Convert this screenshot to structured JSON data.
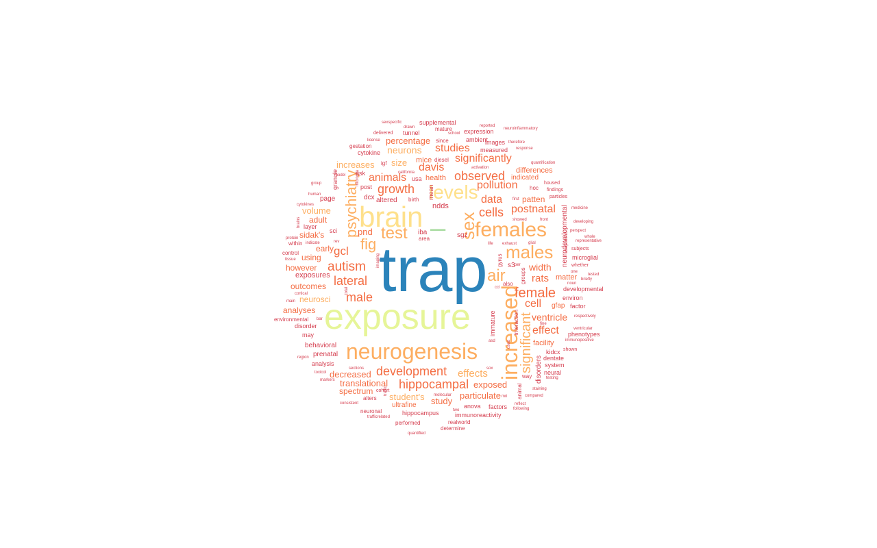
{
  "palette": {
    "big": "#2b83ba",
    "yellowgreen": "#e6f598",
    "yellow": "#fee08b",
    "lightorange": "#fdae61",
    "orange": "#f46d43",
    "red": "#d53e4f",
    "green": "#abdda4"
  },
  "words": [
    {
      "t": "trap",
      "c": "big"
    },
    {
      "t": "exposure",
      "c": "yellowgreen"
    },
    {
      "t": "brain",
      "c": "yellow"
    },
    {
      "t": "–",
      "c": "green"
    },
    {
      "t": "neurogenesis",
      "c": "lightorange"
    },
    {
      "t": "females",
      "c": "lightorange"
    },
    {
      "t": "increased",
      "c": "lightorange"
    },
    {
      "t": "sex",
      "c": "lightorange"
    },
    {
      "t": "levels",
      "c": "yellow"
    },
    {
      "t": "males",
      "c": "lightorange"
    },
    {
      "t": "test",
      "c": "lightorange"
    },
    {
      "t": "fig",
      "c": "lightorange"
    },
    {
      "t": "air",
      "c": "lightorange"
    },
    {
      "t": "psychiatry",
      "c": "lightorange"
    },
    {
      "t": "significant",
      "c": "lightorange"
    },
    {
      "t": "female",
      "c": "orange"
    },
    {
      "t": "autism",
      "c": "orange"
    },
    {
      "t": "hippocampal",
      "c": "orange"
    },
    {
      "t": "development",
      "c": "orange"
    },
    {
      "t": "male",
      "c": "orange"
    },
    {
      "t": "observed",
      "c": "orange"
    },
    {
      "t": "growth",
      "c": "orange"
    },
    {
      "t": "lateral",
      "c": "orange"
    },
    {
      "t": "cells",
      "c": "orange"
    },
    {
      "t": "data",
      "c": "orange"
    },
    {
      "t": "effects",
      "c": "lightorange"
    },
    {
      "t": "studies",
      "c": "orange"
    },
    {
      "t": "significantly",
      "c": "orange"
    },
    {
      "t": "pollution",
      "c": "orange"
    },
    {
      "t": "animals",
      "c": "orange"
    },
    {
      "t": "davis",
      "c": "orange"
    },
    {
      "t": "postnatal",
      "c": "orange"
    },
    {
      "t": "gcl",
      "c": "orange"
    },
    {
      "t": "effect",
      "c": "orange"
    },
    {
      "t": "width",
      "c": "orange"
    },
    {
      "t": "cell",
      "c": "orange"
    },
    {
      "t": "rats",
      "c": "orange"
    },
    {
      "t": "neurons",
      "c": "lightorange"
    },
    {
      "t": "percentage",
      "c": "orange"
    },
    {
      "t": "ventricle",
      "c": "orange"
    },
    {
      "t": "translational",
      "c": "orange"
    },
    {
      "t": "exposed",
      "c": "orange"
    },
    {
      "t": "student's",
      "c": "lightorange"
    },
    {
      "t": "particulate",
      "c": "orange"
    },
    {
      "t": "study",
      "c": "orange"
    },
    {
      "t": "decreased",
      "c": "orange"
    },
    {
      "t": "spectrum",
      "c": "orange"
    },
    {
      "t": "size",
      "c": "lightorange"
    },
    {
      "t": "pnd",
      "c": "orange"
    },
    {
      "t": "increases",
      "c": "lightorange"
    },
    {
      "t": "volume",
      "c": "lightorange"
    },
    {
      "t": "adult",
      "c": "orange"
    },
    {
      "t": "sidak's",
      "c": "orange"
    },
    {
      "t": "early",
      "c": "orange"
    },
    {
      "t": "however",
      "c": "orange"
    },
    {
      "t": "outcomes",
      "c": "orange"
    },
    {
      "t": "neurosci",
      "c": "lightorange"
    },
    {
      "t": "analyses",
      "c": "orange"
    },
    {
      "t": "using",
      "c": "orange"
    },
    {
      "t": "exposures",
      "c": "red"
    },
    {
      "t": "mice",
      "c": "orange"
    },
    {
      "t": "health",
      "c": "orange"
    },
    {
      "t": "patten",
      "c": "orange"
    },
    {
      "t": "differences",
      "c": "orange"
    },
    {
      "t": "indicated",
      "c": "orange"
    },
    {
      "t": "matter",
      "c": "orange"
    },
    {
      "t": "microglial",
      "c": "red"
    },
    {
      "t": "developmental",
      "c": "red"
    },
    {
      "t": "environ",
      "c": "red"
    },
    {
      "t": "factor",
      "c": "red"
    },
    {
      "t": "gfap",
      "c": "orange"
    },
    {
      "t": "facility",
      "c": "orange"
    },
    {
      "t": "kidcx",
      "c": "red"
    },
    {
      "t": "dentate",
      "c": "red"
    },
    {
      "t": "system",
      "c": "red"
    },
    {
      "t": "neural",
      "c": "red"
    },
    {
      "t": "phenotypes",
      "c": "red"
    },
    {
      "t": "immature",
      "c": "red"
    },
    {
      "t": "disorders",
      "c": "red"
    },
    {
      "t": "neurodevelopmental",
      "c": "red"
    },
    {
      "t": "interaction",
      "c": "red"
    },
    {
      "t": "animal",
      "c": "red"
    },
    {
      "t": "groups",
      "c": "red"
    },
    {
      "t": "way",
      "c": "red"
    },
    {
      "t": "anova",
      "c": "red"
    },
    {
      "t": "factors",
      "c": "red"
    },
    {
      "t": "immunoreactivity",
      "c": "red"
    },
    {
      "t": "ultrafine",
      "c": "orange"
    },
    {
      "t": "hippocampus",
      "c": "red"
    },
    {
      "t": "realworld",
      "c": "red"
    },
    {
      "t": "determine",
      "c": "red"
    },
    {
      "t": "performed",
      "c": "red"
    },
    {
      "t": "neuronal",
      "c": "red"
    },
    {
      "t": "alters",
      "c": "red"
    },
    {
      "t": "analysis",
      "c": "red"
    },
    {
      "t": "prenatal",
      "c": "red"
    },
    {
      "t": "behavioral",
      "c": "red"
    },
    {
      "t": "may",
      "c": "red"
    },
    {
      "t": "disorder",
      "c": "red"
    },
    {
      "t": "environmental",
      "c": "red"
    },
    {
      "t": "control",
      "c": "red"
    },
    {
      "t": "layer",
      "c": "red"
    },
    {
      "t": "within",
      "c": "red"
    },
    {
      "t": "page",
      "c": "red"
    },
    {
      "t": "granule",
      "c": "red"
    },
    {
      "t": "post",
      "c": "red"
    },
    {
      "t": "dcx",
      "c": "red"
    },
    {
      "t": "altered",
      "c": "red"
    },
    {
      "t": "birth",
      "c": "red"
    },
    {
      "t": "ndds",
      "c": "red"
    },
    {
      "t": "iba",
      "c": "red"
    },
    {
      "t": "area",
      "c": "red"
    },
    {
      "t": "sgz",
      "c": "red"
    },
    {
      "t": "mean",
      "c": "red"
    },
    {
      "t": "usa",
      "c": "red"
    },
    {
      "t": "igf",
      "c": "red"
    },
    {
      "t": "risk",
      "c": "red"
    },
    {
      "t": "cytokine",
      "c": "red"
    },
    {
      "t": "gestation",
      "c": "red"
    },
    {
      "t": "tunnel",
      "c": "red"
    },
    {
      "t": "mature",
      "c": "red"
    },
    {
      "t": "supplemental",
      "c": "red"
    },
    {
      "t": "expression",
      "c": "red"
    },
    {
      "t": "ambient",
      "c": "red"
    },
    {
      "t": "images",
      "c": "red"
    },
    {
      "t": "measured",
      "c": "red"
    },
    {
      "t": "since",
      "c": "red"
    },
    {
      "t": "diesel",
      "c": "red"
    },
    {
      "t": "delivered",
      "c": "red"
    },
    {
      "t": "sexspecific",
      "c": "red"
    },
    {
      "t": "drawn",
      "c": "red"
    },
    {
      "t": "school",
      "c": "red"
    },
    {
      "t": "reported",
      "c": "red"
    },
    {
      "t": "neuroinflammatory",
      "c": "red"
    },
    {
      "t": "therefore",
      "c": "red"
    },
    {
      "t": "response",
      "c": "red"
    },
    {
      "t": "quantification",
      "c": "red"
    },
    {
      "t": "activation",
      "c": "red"
    },
    {
      "t": "housed",
      "c": "red"
    },
    {
      "t": "findings",
      "c": "red"
    },
    {
      "t": "particles",
      "c": "red"
    },
    {
      "t": "hoc",
      "c": "red"
    },
    {
      "t": "first",
      "c": "red"
    },
    {
      "t": "showed",
      "c": "red"
    },
    {
      "t": "front",
      "c": "red"
    },
    {
      "t": "medicine",
      "c": "red"
    },
    {
      "t": "developing",
      "c": "red"
    },
    {
      "t": "perspect",
      "c": "red"
    },
    {
      "t": "whole",
      "c": "red"
    },
    {
      "t": "representative",
      "c": "red"
    },
    {
      "t": "subjects",
      "c": "red"
    },
    {
      "t": "whether",
      "c": "red"
    },
    {
      "t": "one",
      "c": "red"
    },
    {
      "t": "tested",
      "c": "red"
    },
    {
      "t": "briefly",
      "c": "red"
    },
    {
      "t": "noun",
      "c": "red"
    },
    {
      "t": "respectively",
      "c": "red"
    },
    {
      "t": "ventricular",
      "c": "red"
    },
    {
      "t": "immunopositive",
      "c": "red"
    },
    {
      "t": "shown",
      "c": "red"
    },
    {
      "t": "testing",
      "c": "red"
    },
    {
      "t": "staining",
      "c": "red"
    },
    {
      "t": "compared",
      "c": "red"
    },
    {
      "t": "reflect",
      "c": "red"
    },
    {
      "t": "following",
      "c": "red"
    },
    {
      "t": "fine",
      "c": "red"
    },
    {
      "t": "mri",
      "c": "red"
    },
    {
      "t": "two",
      "c": "red"
    },
    {
      "t": "molecular",
      "c": "red"
    },
    {
      "t": "consistent",
      "c": "red"
    },
    {
      "t": "trafficrelated",
      "c": "red"
    },
    {
      "t": "quantified",
      "c": "red"
    },
    {
      "t": "cohort",
      "c": "red"
    },
    {
      "t": "traffic",
      "c": "red"
    },
    {
      "t": "sections",
      "c": "red"
    },
    {
      "t": "toxicol",
      "c": "red"
    },
    {
      "t": "markers",
      "c": "red"
    },
    {
      "t": "region",
      "c": "red"
    },
    {
      "t": "bar",
      "c": "red"
    },
    {
      "t": "main",
      "c": "red"
    },
    {
      "t": "cortical",
      "c": "red"
    },
    {
      "t": "tissue",
      "c": "red"
    },
    {
      "t": "indicate",
      "c": "red"
    },
    {
      "t": "protein",
      "c": "red"
    },
    {
      "t": "brains",
      "c": "red"
    },
    {
      "t": "cytokines",
      "c": "red"
    },
    {
      "t": "human",
      "c": "red"
    },
    {
      "t": "group",
      "c": "red"
    },
    {
      "t": "model",
      "c": "red"
    },
    {
      "t": "license",
      "c": "red"
    },
    {
      "t": "california",
      "c": "red"
    },
    {
      "t": "rev",
      "c": "red"
    },
    {
      "t": "sci",
      "c": "red"
    },
    {
      "t": "total",
      "c": "red"
    },
    {
      "t": "microglia",
      "c": "red"
    },
    {
      "t": "imaging",
      "c": "red"
    },
    {
      "t": "sox",
      "c": "red"
    },
    {
      "t": "life",
      "c": "red"
    },
    {
      "t": "exhaust",
      "c": "red"
    },
    {
      "t": "glial",
      "c": "red"
    },
    {
      "t": "per",
      "c": "red"
    },
    {
      "t": "also",
      "c": "red"
    },
    {
      "t": "asd",
      "c": "red"
    },
    {
      "t": "used",
      "c": "red"
    },
    {
      "t": "gyrus",
      "c": "red"
    },
    {
      "t": "components",
      "c": "red"
    },
    {
      "t": "ccl",
      "c": "red"
    },
    {
      "t": "s3",
      "c": "red"
    }
  ]
}
